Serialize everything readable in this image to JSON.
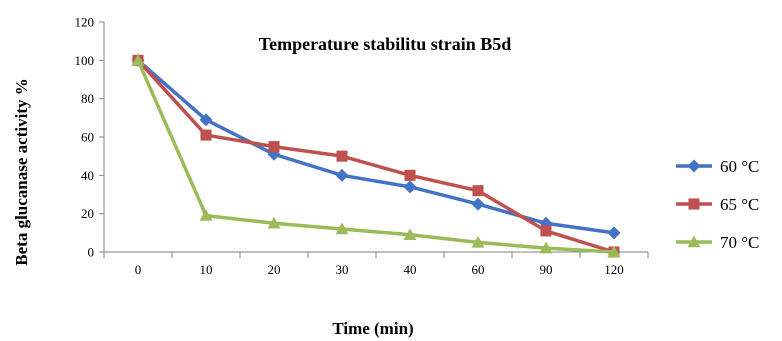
{
  "chart_data": {
    "type": "line",
    "title": "Temperature stabilitu strain B5d",
    "xlabel": "Time (min)",
    "ylabel": "Beta glucanase activity %",
    "categories": [
      "0",
      "10",
      "20",
      "30",
      "40",
      "60",
      "90",
      "120"
    ],
    "ylim": [
      0,
      120
    ],
    "yticks": [
      0,
      20,
      40,
      60,
      80,
      100,
      120
    ],
    "grid": false,
    "legend_position": "right",
    "series": [
      {
        "name": "60 °C",
        "color": "#4472c4",
        "marker": "diamond",
        "values": [
          100,
          69,
          51,
          40,
          34,
          25,
          15,
          10
        ]
      },
      {
        "name": "65 °C",
        "color": "#c0504d",
        "marker": "square",
        "values": [
          100,
          61,
          55,
          50,
          40,
          32,
          11,
          0
        ]
      },
      {
        "name": "70 °C",
        "color": "#9bbb59",
        "marker": "triangle",
        "values": [
          100,
          19,
          15,
          12,
          9,
          5,
          2,
          0
        ]
      }
    ]
  }
}
